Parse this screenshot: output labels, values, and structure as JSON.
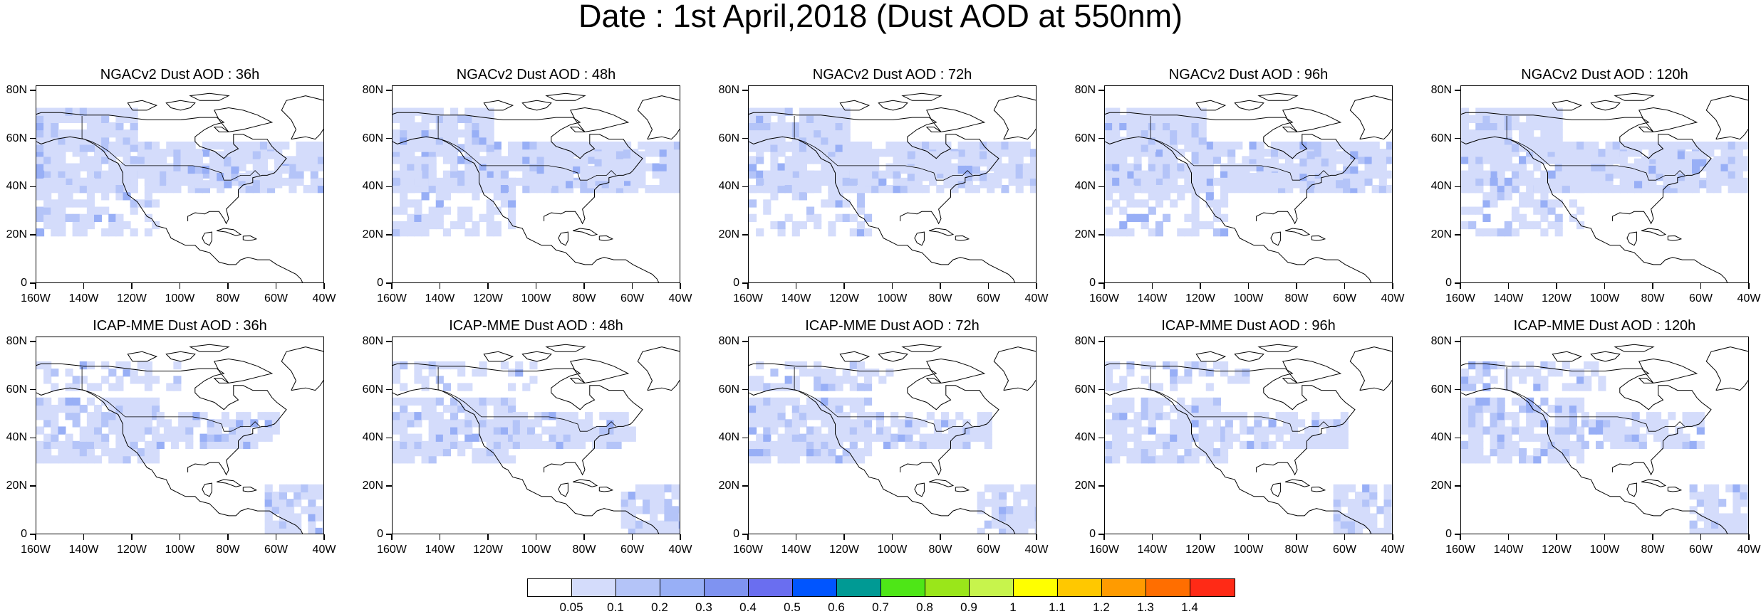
{
  "title": "Date : 1st April,2018 (Dust AOD at 550nm)",
  "axes": {
    "y_labels": [
      "80N",
      "60N",
      "40N",
      "20N",
      "0"
    ],
    "x_labels": [
      "160W",
      "140W",
      "120W",
      "100W",
      "80W",
      "60W",
      "40W"
    ]
  },
  "panels": [
    {
      "title": "NGACv2 Dust AOD : 36h"
    },
    {
      "title": "NGACv2 Dust AOD : 48h"
    },
    {
      "title": "NGACv2 Dust AOD : 72h"
    },
    {
      "title": "NGACv2 Dust AOD : 96h"
    },
    {
      "title": "NGACv2 Dust AOD : 120h"
    },
    {
      "title": "ICAP-MME Dust AOD : 36h"
    },
    {
      "title": "ICAP-MME Dust AOD : 48h"
    },
    {
      "title": "ICAP-MME Dust AOD : 72h"
    },
    {
      "title": "ICAP-MME Dust AOD : 96h"
    },
    {
      "title": "ICAP-MME Dust AOD : 120h"
    }
  ],
  "colorbar": {
    "labels": [
      "0.05",
      "0.1",
      "0.2",
      "0.3",
      "0.4",
      "0.5",
      "0.6",
      "0.7",
      "0.8",
      "0.9",
      "1",
      "1.1",
      "1.2",
      "1.3",
      "1.4"
    ],
    "colors": [
      "#ffffff",
      "#d4dcfb",
      "#b4c4f8",
      "#98aff6",
      "#7f93f1",
      "#6a6ef0",
      "#0055ff",
      "#009a94",
      "#4ee617",
      "#9ae61a",
      "#c7f44c",
      "#ffff00",
      "#ffc800",
      "#ff9b00",
      "#ff6e00",
      "#ff2a16"
    ]
  }
}
